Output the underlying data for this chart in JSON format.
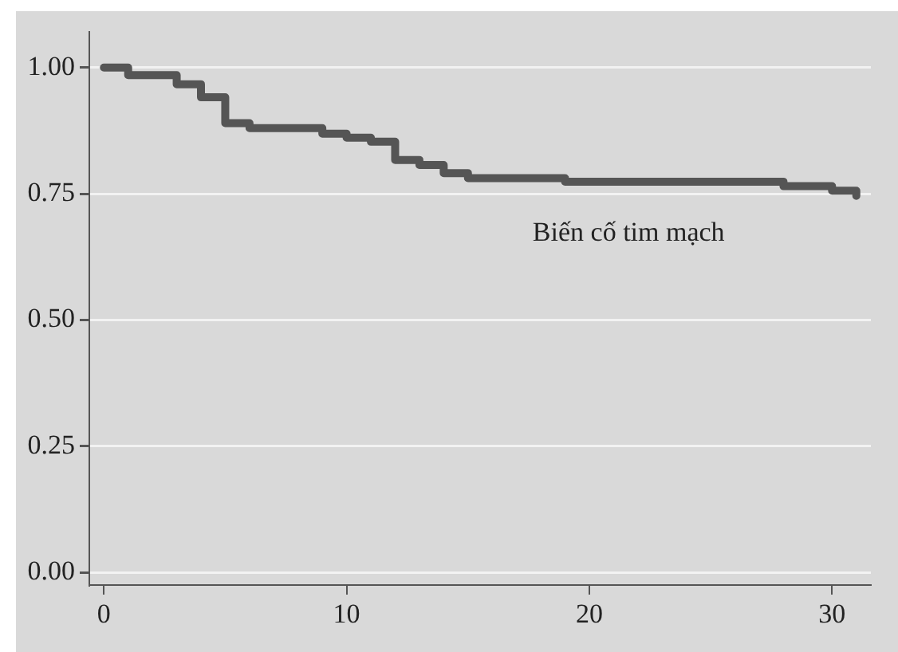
{
  "chart_data": {
    "type": "step",
    "x": [
      0,
      1,
      3,
      4,
      5,
      6,
      9,
      10,
      11,
      12,
      13,
      14,
      15,
      19,
      28,
      30,
      31
    ],
    "values": [
      1.0,
      0.985,
      0.967,
      0.941,
      0.89,
      0.88,
      0.869,
      0.861,
      0.853,
      0.817,
      0.807,
      0.791,
      0.781,
      0.774,
      0.765,
      0.756,
      0.746
    ],
    "color": "#555555",
    "xlim": [
      -0.6,
      31.6
    ],
    "xticks": [
      0,
      10,
      20,
      30
    ],
    "ylim": [
      -0.025,
      1.07
    ],
    "yticks": [
      {
        "value": 0,
        "label": "0.00"
      },
      {
        "value": 0.25,
        "label": "0.25"
      },
      {
        "value": 0.5,
        "label": "0.50"
      },
      {
        "value": 0.75,
        "label": "0.75"
      },
      {
        "value": 1,
        "label": "1.00"
      }
    ],
    "grid": "y",
    "legend": false,
    "marker": "none",
    "line_style": "solid",
    "annotations": [
      "Biến cố tim mạch"
    ]
  }
}
